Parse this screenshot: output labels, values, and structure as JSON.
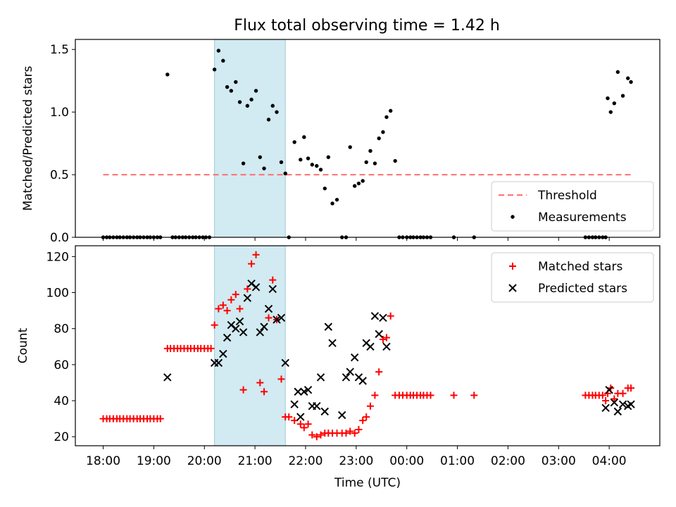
{
  "title": "Flux total observing time = 1.42 h",
  "chart_data": [
    {
      "type": "scatter",
      "ylabel": "Matched/Predicted stars",
      "xlim": [
        -0.55,
        11.0
      ],
      "ylim": [
        0,
        1.58
      ],
      "yticks": [
        0.0,
        0.5,
        1.0,
        1.5
      ],
      "ytick_labels": [
        "0.0",
        "0.5",
        "1.0",
        "1.5"
      ],
      "xtick_positions": [
        0,
        1,
        2,
        3,
        4,
        5,
        6,
        7,
        8,
        9,
        10
      ],
      "shaded_span": [
        2.2,
        3.6
      ],
      "legend": {
        "placement": "bottom-right",
        "entries": [
          {
            "label": "Threshold",
            "style": "dashed-line",
            "color": "#ff7070"
          },
          {
            "label": "Measurements",
            "style": "dot",
            "color": "#000000"
          }
        ]
      },
      "threshold": {
        "x": [
          0,
          10.45
        ],
        "y": 0.5
      },
      "series": [
        {
          "name": "Measurements",
          "points": [
            [
              0.0,
              0
            ],
            [
              0.07,
              0
            ],
            [
              0.13,
              0
            ],
            [
              0.2,
              0
            ],
            [
              0.27,
              0
            ],
            [
              0.33,
              0
            ],
            [
              0.4,
              0
            ],
            [
              0.47,
              0
            ],
            [
              0.53,
              0
            ],
            [
              0.6,
              0
            ],
            [
              0.67,
              0
            ],
            [
              0.73,
              0
            ],
            [
              0.8,
              0
            ],
            [
              0.87,
              0
            ],
            [
              0.93,
              0
            ],
            [
              1.0,
              0
            ],
            [
              1.07,
              0
            ],
            [
              1.13,
              0
            ],
            [
              1.27,
              1.3
            ],
            [
              1.37,
              0
            ],
            [
              1.43,
              0
            ],
            [
              1.5,
              0
            ],
            [
              1.57,
              0
            ],
            [
              1.63,
              0
            ],
            [
              1.7,
              0
            ],
            [
              1.77,
              0
            ],
            [
              1.83,
              0
            ],
            [
              1.9,
              0
            ],
            [
              1.97,
              0
            ],
            [
              2.03,
              0
            ],
            [
              2.1,
              0
            ],
            [
              2.2,
              1.34
            ],
            [
              2.28,
              1.49
            ],
            [
              2.37,
              1.41
            ],
            [
              2.45,
              1.2
            ],
            [
              2.53,
              1.17
            ],
            [
              2.62,
              1.24
            ],
            [
              2.7,
              1.08
            ],
            [
              2.77,
              0.59
            ],
            [
              2.85,
              1.05
            ],
            [
              2.93,
              1.1
            ],
            [
              3.02,
              1.17
            ],
            [
              3.1,
              0.64
            ],
            [
              3.18,
              0.55
            ],
            [
              3.27,
              0.94
            ],
            [
              3.35,
              1.05
            ],
            [
              3.43,
              1.0
            ],
            [
              3.52,
              0.6
            ],
            [
              3.6,
              0.51
            ],
            [
              3.67,
              0
            ],
            [
              3.78,
              0.76
            ],
            [
              3.9,
              0.62
            ],
            [
              3.97,
              0.8
            ],
            [
              4.05,
              0.63
            ],
            [
              4.13,
              0.58
            ],
            [
              4.22,
              0.57
            ],
            [
              4.3,
              0.54
            ],
            [
              4.38,
              0.39
            ],
            [
              4.45,
              0.64
            ],
            [
              4.53,
              0.27
            ],
            [
              4.62,
              0.3
            ],
            [
              4.72,
              0
            ],
            [
              4.8,
              0
            ],
            [
              4.88,
              0.72
            ],
            [
              4.97,
              0.41
            ],
            [
              5.05,
              0.43
            ],
            [
              5.13,
              0.45
            ],
            [
              5.2,
              0.6
            ],
            [
              5.28,
              0.69
            ],
            [
              5.37,
              0.59
            ],
            [
              5.45,
              0.79
            ],
            [
              5.53,
              0.84
            ],
            [
              5.6,
              0.96
            ],
            [
              5.68,
              1.01
            ],
            [
              5.77,
              0.61
            ],
            [
              5.85,
              0
            ],
            [
              5.92,
              0
            ],
            [
              6.0,
              0
            ],
            [
              6.07,
              0
            ],
            [
              6.13,
              0
            ],
            [
              6.2,
              0
            ],
            [
              6.27,
              0
            ],
            [
              6.33,
              0
            ],
            [
              6.4,
              0
            ],
            [
              6.47,
              0
            ],
            [
              6.93,
              0
            ],
            [
              7.33,
              0
            ],
            [
              9.53,
              0
            ],
            [
              9.6,
              0
            ],
            [
              9.67,
              0
            ],
            [
              9.73,
              0
            ],
            [
              9.8,
              0
            ],
            [
              9.87,
              0
            ],
            [
              9.93,
              0
            ],
            [
              9.97,
              1.11
            ],
            [
              10.03,
              1.0
            ],
            [
              10.1,
              1.07
            ],
            [
              10.17,
              1.32
            ],
            [
              10.27,
              1.13
            ],
            [
              10.37,
              1.27
            ],
            [
              10.43,
              1.24
            ]
          ]
        }
      ]
    },
    {
      "type": "scatter",
      "xlabel": "Time (UTC)",
      "ylabel": "Count",
      "xlim": [
        -0.55,
        11.0
      ],
      "ylim": [
        15,
        126
      ],
      "yticks": [
        20,
        40,
        60,
        80,
        100,
        120
      ],
      "ytick_labels": [
        "20",
        "40",
        "60",
        "80",
        "100",
        "120"
      ],
      "xtick_positions": [
        0,
        1,
        2,
        3,
        4,
        5,
        6,
        7,
        8,
        9,
        10
      ],
      "xtick_labels": [
        "18:00",
        "19:00",
        "20:00",
        "21:00",
        "22:00",
        "23:00",
        "00:00",
        "01:00",
        "02:00",
        "03:00",
        "04:00"
      ],
      "shaded_span": [
        2.2,
        3.6
      ],
      "legend": {
        "placement": "top-right",
        "entries": [
          {
            "label": "Matched stars",
            "style": "plus",
            "color": "#ff0000"
          },
          {
            "label": "Predicted stars",
            "style": "x",
            "color": "#000000"
          }
        ]
      },
      "series": [
        {
          "name": "Matched stars",
          "points": [
            [
              0.0,
              30
            ],
            [
              0.07,
              30
            ],
            [
              0.13,
              30
            ],
            [
              0.2,
              30
            ],
            [
              0.27,
              30
            ],
            [
              0.33,
              30
            ],
            [
              0.4,
              30
            ],
            [
              0.47,
              30
            ],
            [
              0.53,
              30
            ],
            [
              0.6,
              30
            ],
            [
              0.67,
              30
            ],
            [
              0.73,
              30
            ],
            [
              0.8,
              30
            ],
            [
              0.87,
              30
            ],
            [
              0.93,
              30
            ],
            [
              1.0,
              30
            ],
            [
              1.07,
              30
            ],
            [
              1.13,
              30
            ],
            [
              1.27,
              69
            ],
            [
              1.33,
              69
            ],
            [
              1.4,
              69
            ],
            [
              1.47,
              69
            ],
            [
              1.53,
              69
            ],
            [
              1.6,
              69
            ],
            [
              1.67,
              69
            ],
            [
              1.73,
              69
            ],
            [
              1.8,
              69
            ],
            [
              1.87,
              69
            ],
            [
              1.93,
              69
            ],
            [
              2.0,
              69
            ],
            [
              2.07,
              69
            ],
            [
              2.13,
              69
            ],
            [
              2.2,
              82
            ],
            [
              2.28,
              91
            ],
            [
              2.37,
              93
            ],
            [
              2.45,
              90
            ],
            [
              2.53,
              96
            ],
            [
              2.62,
              99
            ],
            [
              2.7,
              91
            ],
            [
              2.77,
              46
            ],
            [
              2.85,
              102
            ],
            [
              2.93,
              116
            ],
            [
              3.02,
              121
            ],
            [
              3.1,
              50
            ],
            [
              3.18,
              45
            ],
            [
              3.27,
              86
            ],
            [
              3.35,
              107
            ],
            [
              3.43,
              85
            ],
            [
              3.52,
              52
            ],
            [
              3.6,
              31
            ],
            [
              3.67,
              31
            ],
            [
              3.78,
              29
            ],
            [
              3.9,
              27
            ],
            [
              3.97,
              25
            ],
            [
              4.05,
              27
            ],
            [
              4.13,
              21
            ],
            [
              4.22,
              20
            ],
            [
              4.3,
              21
            ],
            [
              4.38,
              22
            ],
            [
              4.45,
              22
            ],
            [
              4.53,
              22
            ],
            [
              4.62,
              22
            ],
            [
              4.72,
              22
            ],
            [
              4.8,
              22
            ],
            [
              4.88,
              23
            ],
            [
              4.97,
              22
            ],
            [
              5.05,
              24
            ],
            [
              5.13,
              29
            ],
            [
              5.2,
              31
            ],
            [
              5.28,
              37
            ],
            [
              5.37,
              43
            ],
            [
              5.45,
              56
            ],
            [
              5.53,
              74
            ],
            [
              5.6,
              75
            ],
            [
              5.68,
              87
            ],
            [
              5.77,
              43
            ],
            [
              5.85,
              43
            ],
            [
              5.92,
              43
            ],
            [
              6.0,
              43
            ],
            [
              6.07,
              43
            ],
            [
              6.13,
              43
            ],
            [
              6.2,
              43
            ],
            [
              6.27,
              43
            ],
            [
              6.33,
              43
            ],
            [
              6.4,
              43
            ],
            [
              6.47,
              43
            ],
            [
              6.93,
              43
            ],
            [
              7.33,
              43
            ],
            [
              9.53,
              43
            ],
            [
              9.6,
              43
            ],
            [
              9.67,
              43
            ],
            [
              9.73,
              43
            ],
            [
              9.8,
              43
            ],
            [
              9.87,
              43
            ],
            [
              9.93,
              40
            ],
            [
              9.97,
              44
            ],
            [
              10.03,
              47
            ],
            [
              10.1,
              41
            ],
            [
              10.17,
              44
            ],
            [
              10.27,
              44
            ],
            [
              10.37,
              47
            ],
            [
              10.43,
              47
            ]
          ]
        },
        {
          "name": "Predicted stars",
          "points": [
            [
              1.27,
              53
            ],
            [
              2.2,
              61
            ],
            [
              2.28,
              61
            ],
            [
              2.37,
              66
            ],
            [
              2.45,
              75
            ],
            [
              2.53,
              82
            ],
            [
              2.62,
              80
            ],
            [
              2.7,
              84
            ],
            [
              2.77,
              78
            ],
            [
              2.85,
              97
            ],
            [
              2.93,
              105
            ],
            [
              3.02,
              103
            ],
            [
              3.1,
              78
            ],
            [
              3.18,
              81
            ],
            [
              3.27,
              91
            ],
            [
              3.35,
              102
            ],
            [
              3.43,
              85
            ],
            [
              3.52,
              86
            ],
            [
              3.6,
              61
            ],
            [
              3.78,
              38
            ],
            [
              3.85,
              45
            ],
            [
              3.9,
              31
            ],
            [
              3.97,
              45
            ],
            [
              4.05,
              46
            ],
            [
              4.13,
              37
            ],
            [
              4.22,
              37
            ],
            [
              4.3,
              53
            ],
            [
              4.38,
              34
            ],
            [
              4.45,
              81
            ],
            [
              4.53,
              72
            ],
            [
              4.72,
              32
            ],
            [
              4.8,
              53
            ],
            [
              4.88,
              56
            ],
            [
              4.97,
              64
            ],
            [
              5.05,
              53
            ],
            [
              5.13,
              51
            ],
            [
              5.2,
              72
            ],
            [
              5.28,
              70
            ],
            [
              5.37,
              87
            ],
            [
              5.45,
              77
            ],
            [
              5.53,
              86
            ],
            [
              5.6,
              70
            ],
            [
              9.93,
              36
            ],
            [
              10.0,
              46
            ],
            [
              10.1,
              39
            ],
            [
              10.17,
              34
            ],
            [
              10.27,
              38
            ],
            [
              10.37,
              37
            ],
            [
              10.43,
              38
            ]
          ]
        }
      ]
    }
  ]
}
